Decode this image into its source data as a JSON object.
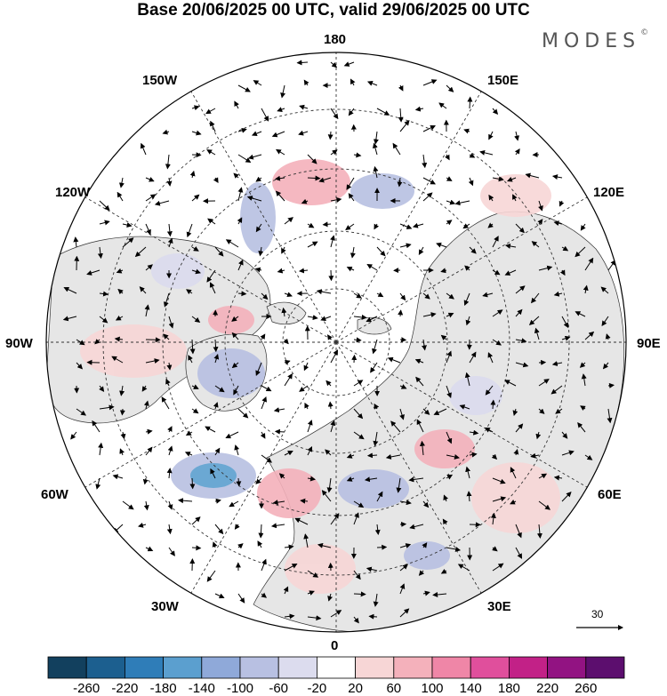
{
  "title": "Base 20/06/2025 00 UTC, valid 29/06/2025 00 UTC",
  "brand": "MODES",
  "brand_mark": "©",
  "longitude_labels": {
    "top": "180",
    "top_left": "150W",
    "top_right": "150E",
    "upper_left": "120W",
    "upper_right": "120E",
    "left": "90W",
    "right": "90E",
    "lower_left": "60W",
    "lower_right": "60E",
    "bottom_left": "30W",
    "bottom_right": "30E",
    "bottom": "0"
  },
  "reference_vector": "30",
  "colorbar": {
    "ticks": [
      "-260",
      "-220",
      "-180",
      "-140",
      "-100",
      "-60",
      "-20",
      "20",
      "60",
      "100",
      "140",
      "180",
      "220",
      "260"
    ],
    "colors": [
      "#12405e",
      "#1c5f8f",
      "#2f7db8",
      "#5b9fcf",
      "#8fa9d9",
      "#b8c0e2",
      "#dcdcee",
      "#ffffff",
      "#f7d6d6",
      "#f4b1bb",
      "#ef86a7",
      "#e04f9c",
      "#c22187",
      "#921382",
      "#5c0e6e"
    ]
  },
  "colors": {
    "land": "#e6e6e6",
    "ocean": "#ffffff"
  }
}
